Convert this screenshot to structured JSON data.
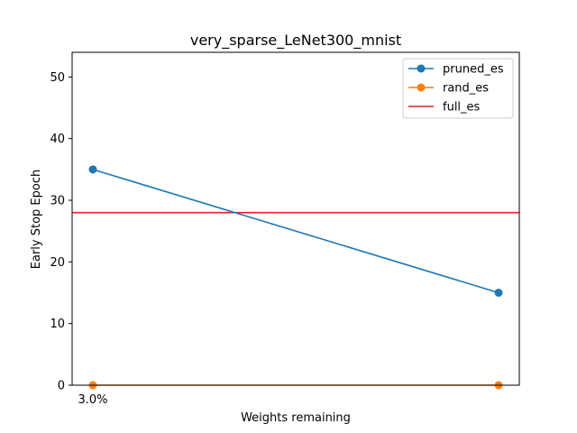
{
  "chart_data": {
    "type": "line",
    "title": "very_sparse_LeNet300_mnist",
    "xlabel": "Weights remaining",
    "ylabel": "Early Stop Epoch",
    "x_categories": [
      "3.0%",
      ""
    ],
    "ylim": [
      0,
      54
    ],
    "yticks": [
      0,
      10,
      20,
      30,
      40,
      50
    ],
    "grid": false,
    "legend_position": "top-right",
    "series": [
      {
        "name": "pruned_es",
        "color": "#1f77b4",
        "marker": "circle",
        "values": [
          35,
          15
        ]
      },
      {
        "name": "rand_es",
        "color": "#ff7f0e",
        "marker": "circle",
        "values": [
          0,
          0
        ]
      }
    ],
    "hlines": [
      {
        "name": "full_es",
        "color": "#d62728",
        "y": 28
      }
    ]
  }
}
